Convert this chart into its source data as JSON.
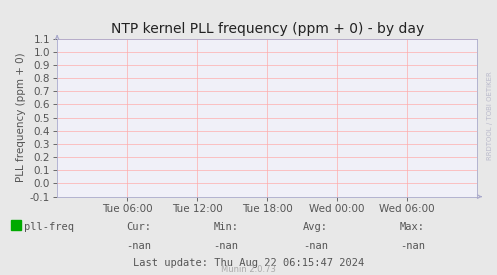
{
  "title": "NTP kernel PLL frequency (ppm + 0) - by day",
  "ylabel": "PLL frequency (ppm + 0)",
  "ylim": [
    -0.1,
    1.1
  ],
  "yticks": [
    -0.1,
    0.0,
    0.1,
    0.2,
    0.3,
    0.4,
    0.5,
    0.6,
    0.7,
    0.8,
    0.9,
    1.0,
    1.1
  ],
  "xtick_labels": [
    "Tue 06:00",
    "Tue 12:00",
    "Tue 18:00",
    "Wed 00:00",
    "Wed 06:00"
  ],
  "xtick_pos": [
    0.1667,
    0.3333,
    0.5,
    0.6667,
    0.8333
  ],
  "bg_color": "#e8e8e8",
  "plot_bg_color": "#f0f0f8",
  "grid_color": "#ffaaaa",
  "border_color": "#aaaacc",
  "title_color": "#222222",
  "axis_color": "#555555",
  "legend_label": "pll-freq",
  "legend_color": "#00aa00",
  "stats_cur": "-nan",
  "stats_min": "-nan",
  "stats_avg": "-nan",
  "stats_max": "-nan",
  "last_update": "Last update: Thu Aug 22 06:15:47 2024",
  "munin_version": "Munin 2.0.73",
  "watermark": "RRDTOOL / TOBI OETIKER",
  "title_fontsize": 10,
  "ylabel_fontsize": 7.5,
  "tick_fontsize": 7.5,
  "stats_fontsize": 7.5,
  "legend_fontsize": 7.5,
  "last_update_fontsize": 7.5,
  "munin_fontsize": 6.0
}
